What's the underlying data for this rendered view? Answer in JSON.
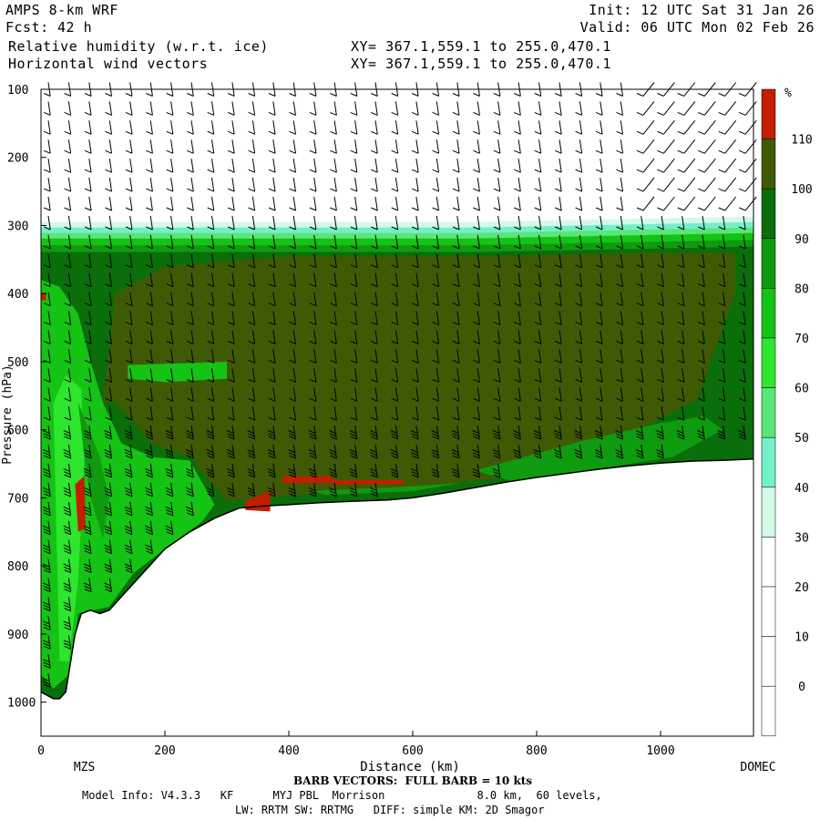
{
  "header": {
    "model": "AMPS 8-km WRF",
    "fcst_label": "Fcst:",
    "fcst_value": "42 h",
    "field1": "Relative humidity (w.r.t. ice)",
    "field2": "Horizontal wind vectors",
    "init": "Init: 12 UTC Sat 31 Jan 26",
    "valid": "Valid: 06 UTC Mon 02 Feb 26",
    "xy1": "XY= 367.1,559.1 to 255.0,470.1",
    "xy2": "XY= 367.1,559.1 to 255.0,470.1"
  },
  "chart_data": {
    "type": "heatmap",
    "title": "Relative humidity (w.r.t. ice)",
    "xlabel": "Distance (km)",
    "ylabel": "Pressure (hPa)",
    "xlim": [
      0,
      1150
    ],
    "ylim": [
      1050,
      100
    ],
    "x_ticks": [
      0,
      200,
      400,
      600,
      800,
      1000
    ],
    "y_ticks": [
      100,
      200,
      300,
      400,
      500,
      600,
      700,
      800,
      900,
      1000
    ],
    "start_label": "MZS",
    "end_label": "DOMEC",
    "colorbar": {
      "unit": "%",
      "levels": [
        0,
        10,
        20,
        30,
        40,
        50,
        60,
        70,
        80,
        90,
        100,
        110
      ],
      "colors": [
        "#ffffff",
        "#ffffff",
        "#ffffff",
        "#ffffff",
        "#d2fae6",
        "#73f0c8",
        "#5ae678",
        "#2de62d",
        "#14c314",
        "#0f9b0f",
        "#0a6e0a",
        "#3f5a05",
        "#c31e00"
      ]
    },
    "terrain": {
      "x": [
        0,
        10,
        20,
        30,
        40,
        55,
        65,
        80,
        95,
        110,
        130,
        160,
        200,
        240,
        280,
        320,
        360,
        400,
        450,
        500,
        560,
        600,
        650,
        700,
        750,
        800,
        850,
        900,
        950,
        1000,
        1050,
        1100,
        1150
      ],
      "p": [
        985,
        990,
        995,
        995,
        985,
        900,
        870,
        865,
        870,
        865,
        845,
        815,
        775,
        750,
        730,
        715,
        712,
        710,
        707,
        705,
        703,
        700,
        693,
        685,
        677,
        670,
        664,
        658,
        653,
        649,
        646,
        645,
        643
      ]
    },
    "moist_top_p": 315,
    "wind_barbs": "full barb = 10 kts"
  },
  "footer": {
    "barb_note": "BARB VECTORS:  FULL BARB = 10 kts",
    "model_info": "Model Info: V4.3.3   KF      MYJ PBL  Morrison              8.0 km,  60 levels,",
    "model_info2": "LW: RRTM SW: RRTMG   DIFF: simple KM: 2D Smagor"
  }
}
